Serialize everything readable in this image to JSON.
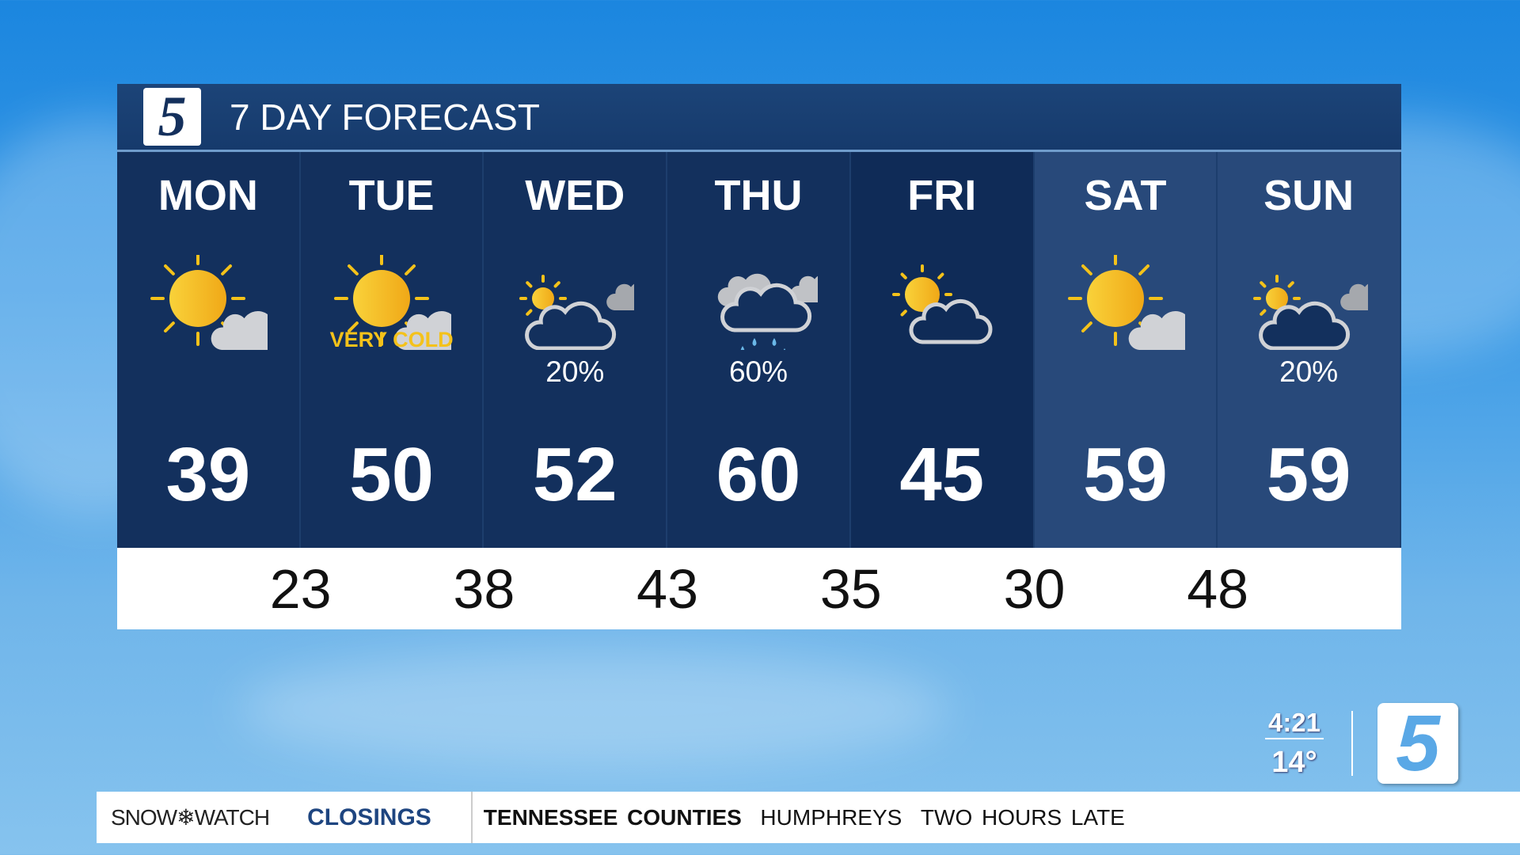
{
  "header": {
    "logo": "5",
    "title": "7 DAY FORECAST"
  },
  "days": [
    {
      "name": "MON",
      "icon": "sun-cloud-icon",
      "note": "",
      "precip": "",
      "high": "39"
    },
    {
      "name": "TUE",
      "icon": "sun-cloud-icon",
      "note": "VERY COLD",
      "precip": "",
      "high": "50"
    },
    {
      "name": "WED",
      "icon": "partly-cloudy-icon",
      "note": "",
      "precip": "20%",
      "high": "52"
    },
    {
      "name": "THU",
      "icon": "rain-cloud-icon",
      "note": "",
      "precip": "60%",
      "high": "60"
    },
    {
      "name": "FRI",
      "icon": "sun-outline-cloud-icon",
      "note": "",
      "precip": "",
      "high": "45"
    },
    {
      "name": "SAT",
      "icon": "sun-cloud-icon",
      "note": "",
      "precip": "",
      "high": "59"
    },
    {
      "name": "SUN",
      "icon": "partly-cloudy-icon",
      "note": "",
      "precip": "20%",
      "high": "59"
    }
  ],
  "lows": [
    "23",
    "38",
    "43",
    "35",
    "30",
    "48"
  ],
  "bug": {
    "time": "4:21",
    "temp": "14°",
    "logo": "5"
  },
  "ticker": {
    "brand": "SNOW❄WATCH",
    "section": "CLOSINGS",
    "region": "TENNESSEE COUNTIES",
    "county": "HUMPHREYS",
    "status": "TWO HOURS LATE"
  },
  "colors": {
    "panel": "#13305d",
    "weekend": "#28497a",
    "accent": "#f4c21a",
    "closings": "#1e4580"
  }
}
